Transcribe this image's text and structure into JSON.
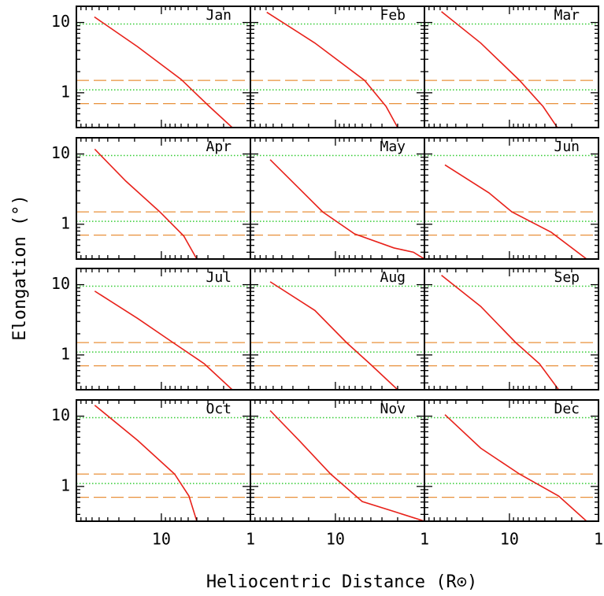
{
  "chart_data": {
    "type": "line",
    "xlabel": "Heliocentric Distance (R⊙)",
    "ylabel": "Elongation (°)",
    "xscale": "log",
    "yscale": "log",
    "xlim": [
      90,
      1
    ],
    "ylim": [
      0.32,
      17
    ],
    "xticks": [
      10,
      1
    ],
    "yticks": [
      1,
      10
    ],
    "xminor_ticks": [
      2,
      3,
      4,
      5,
      6,
      7,
      8,
      9,
      20,
      30,
      40,
      50,
      60,
      70,
      80
    ],
    "yminor_ticks": [
      0.4,
      0.5,
      0.6,
      0.7,
      0.8,
      0.9,
      2,
      3,
      4,
      5,
      6,
      7,
      8,
      9
    ],
    "color": "#e8211a",
    "reference_lines": [
      {
        "value": 9.5,
        "color": "#33cc33",
        "style": "dotted"
      },
      {
        "value": 1.1,
        "color": "#33cc33",
        "style": "dotted"
      },
      {
        "value": 1.5,
        "color": "#e8903a",
        "style": "dashed"
      },
      {
        "value": 0.7,
        "color": "#e8903a",
        "style": "dashed"
      }
    ],
    "panels": [
      {
        "label": "Jan",
        "x": [
          56.5,
          18.4,
          6.0,
          2.9,
          1.6
        ],
        "values": [
          12,
          4.5,
          1.55,
          0.64,
          0.32
        ]
      },
      {
        "label": "Feb",
        "x": [
          59,
          17,
          4.7,
          2.7,
          2.0
        ],
        "values": [
          14,
          5.1,
          1.5,
          0.64,
          0.32
        ]
      },
      {
        "label": "Mar",
        "x": [
          58,
          21,
          7.7,
          4.2,
          2.9
        ],
        "values": [
          14.3,
          5.1,
          1.5,
          0.64,
          0.32
        ]
      },
      {
        "label": "Apr",
        "x": [
          56,
          25,
          10.4,
          5.6,
          4.0
        ],
        "values": [
          11.7,
          4.1,
          1.5,
          0.68,
          0.32
        ]
      },
      {
        "label": "May",
        "x": [
          54,
          13.9,
          6.1,
          2.2,
          1.33,
          1.0
        ],
        "values": [
          8.3,
          1.5,
          0.73,
          0.46,
          0.4,
          0.32
        ]
      },
      {
        "label": "Jun",
        "x": [
          53,
          17,
          9.4,
          3.4,
          1.36
        ],
        "values": [
          7,
          2.8,
          1.5,
          0.77,
          0.32
        ]
      },
      {
        "label": "Jul",
        "x": [
          56,
          18.4,
          7.4,
          3.3,
          1.6
        ],
        "values": [
          8.1,
          3.3,
          1.5,
          0.75,
          0.32
        ]
      },
      {
        "label": "Aug",
        "x": [
          54,
          17,
          7.5,
          4.1,
          2.0
        ],
        "values": [
          11,
          4.3,
          1.5,
          0.75,
          0.32
        ]
      },
      {
        "label": "Sep",
        "x": [
          58,
          21,
          8.5,
          4.6,
          2.8
        ],
        "values": [
          13.6,
          4.9,
          1.5,
          0.75,
          0.32
        ]
      },
      {
        "label": "Oct",
        "x": [
          56,
          18.4,
          7.1,
          4.9,
          4.0
        ],
        "values": [
          14.3,
          4.5,
          1.5,
          0.73,
          0.32
        ]
      },
      {
        "label": "Nov",
        "x": [
          54,
          25.5,
          11.3,
          5.0,
          2.2,
          1.0
        ],
        "values": [
          12,
          4.5,
          1.5,
          0.61,
          0.44,
          0.32
        ]
      },
      {
        "label": "Dec",
        "x": [
          53,
          21,
          7.7,
          2.8,
          1.36
        ],
        "values": [
          10.5,
          3.5,
          1.5,
          0.73,
          0.32
        ]
      }
    ]
  }
}
